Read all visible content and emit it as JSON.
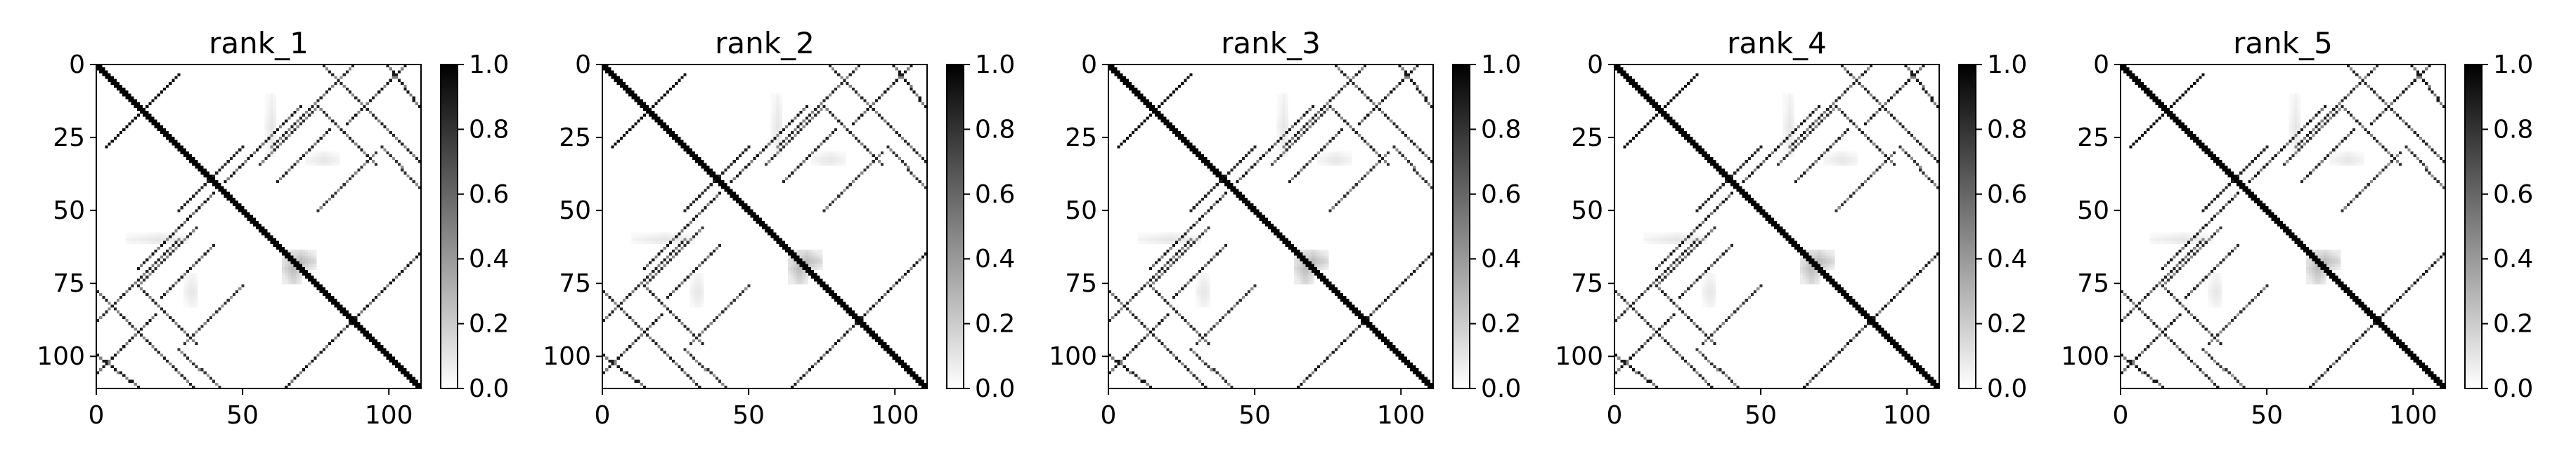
{
  "chart_data": [
    {
      "type": "heatmap",
      "title": "rank_1",
      "matrix_size": 112,
      "xticks": [
        0,
        50,
        100
      ],
      "yticks": [
        0,
        25,
        50,
        75,
        100
      ],
      "xlim": [
        0,
        111
      ],
      "ylim": [
        111,
        0
      ],
      "colorbar": {
        "cmap": "Greys",
        "range": [
          0.0,
          1.0
        ],
        "ticks": [
          "0.0",
          "0.2",
          "0.4",
          "0.6",
          "0.8",
          "1.0"
        ]
      },
      "grid": false,
      "legend": false
    },
    {
      "type": "heatmap",
      "title": "rank_2",
      "matrix_size": 112,
      "xticks": [
        0,
        50,
        100
      ],
      "yticks": [
        0,
        25,
        50,
        75,
        100
      ],
      "xlim": [
        0,
        111
      ],
      "ylim": [
        111,
        0
      ],
      "colorbar": {
        "cmap": "Greys",
        "range": [
          0.0,
          1.0
        ],
        "ticks": [
          "0.0",
          "0.2",
          "0.4",
          "0.6",
          "0.8",
          "1.0"
        ]
      },
      "grid": false,
      "legend": false
    },
    {
      "type": "heatmap",
      "title": "rank_3",
      "matrix_size": 112,
      "xticks": [
        0,
        50,
        100
      ],
      "yticks": [
        0,
        25,
        50,
        75,
        100
      ],
      "xlim": [
        0,
        111
      ],
      "ylim": [
        111,
        0
      ],
      "colorbar": {
        "cmap": "Greys",
        "range": [
          0.0,
          1.0
        ],
        "ticks": [
          "0.0",
          "0.2",
          "0.4",
          "0.6",
          "0.8",
          "1.0"
        ]
      },
      "grid": false,
      "legend": false
    },
    {
      "type": "heatmap",
      "title": "rank_4",
      "matrix_size": 112,
      "xticks": [
        0,
        50,
        100
      ],
      "yticks": [
        0,
        25,
        50,
        75,
        100
      ],
      "xlim": [
        0,
        111
      ],
      "ylim": [
        111,
        0
      ],
      "colorbar": {
        "cmap": "Greys",
        "range": [
          0.0,
          1.0
        ],
        "ticks": [
          "0.0",
          "0.2",
          "0.4",
          "0.6",
          "0.8",
          "1.0"
        ]
      },
      "grid": false,
      "legend": false
    },
    {
      "type": "heatmap",
      "title": "rank_5",
      "matrix_size": 112,
      "xticks": [
        0,
        50,
        100
      ],
      "yticks": [
        0,
        25,
        50,
        75,
        100
      ],
      "xlim": [
        0,
        111
      ],
      "ylim": [
        111,
        0
      ],
      "colorbar": {
        "cmap": "Greys",
        "range": [
          0.0,
          1.0
        ],
        "ticks": [
          "0.0",
          "0.2",
          "0.4",
          "0.6",
          "0.8",
          "1.0"
        ]
      },
      "grid": false,
      "legend": false
    }
  ],
  "pattern": {
    "main_diagonal": {
      "start": 0,
      "end": 111,
      "value": 1.0
    },
    "helices": [
      {
        "x0": 3,
        "y0": 28,
        "x1": 28,
        "y1": 3,
        "value": 0.95
      },
      {
        "x0": 44,
        "y0": 40,
        "x1": 70,
        "y1": 14,
        "value": 0.9
      },
      {
        "x0": 62,
        "y0": 40,
        "x1": 80,
        "y1": 22,
        "value": 0.85
      },
      {
        "x0": 28,
        "y0": 50,
        "x1": 50,
        "y1": 28,
        "value": 0.85
      },
      {
        "x0": 86,
        "y0": 20,
        "x1": 106,
        "y1": 0,
        "value": 0.9
      },
      {
        "x0": 78,
        "y0": 0,
        "x1": 111,
        "y1": 33,
        "value": 0.85
      },
      {
        "x0": 14,
        "y0": 76,
        "x1": 34,
        "y1": 96,
        "value": 0.85
      },
      {
        "x0": 14,
        "y0": 76,
        "x1": 34,
        "y1": 56,
        "value": 0.8
      },
      {
        "x0": 30,
        "y0": 96,
        "x1": 50,
        "y1": 76,
        "value": 0.8
      },
      {
        "x0": 84,
        "y0": 92,
        "x1": 111,
        "y1": 65,
        "value": 0.9
      },
      {
        "x0": 0,
        "y0": 88,
        "x1": 28,
        "y1": 60,
        "value": 0.85
      },
      {
        "x0": 0,
        "y0": 100,
        "x1": 14,
        "y1": 111,
        "value": 0.9
      },
      {
        "x0": 28,
        "y0": 98,
        "x1": 42,
        "y1": 111,
        "value": 0.8
      }
    ],
    "blurs": [
      {
        "x": 64,
        "y": 64,
        "w": 12,
        "h": 7,
        "value": 0.28
      },
      {
        "x": 10,
        "y": 58,
        "w": 22,
        "h": 4,
        "value": 0.1
      },
      {
        "x": 72,
        "y": 30,
        "w": 12,
        "h": 5,
        "value": 0.1
      }
    ]
  }
}
